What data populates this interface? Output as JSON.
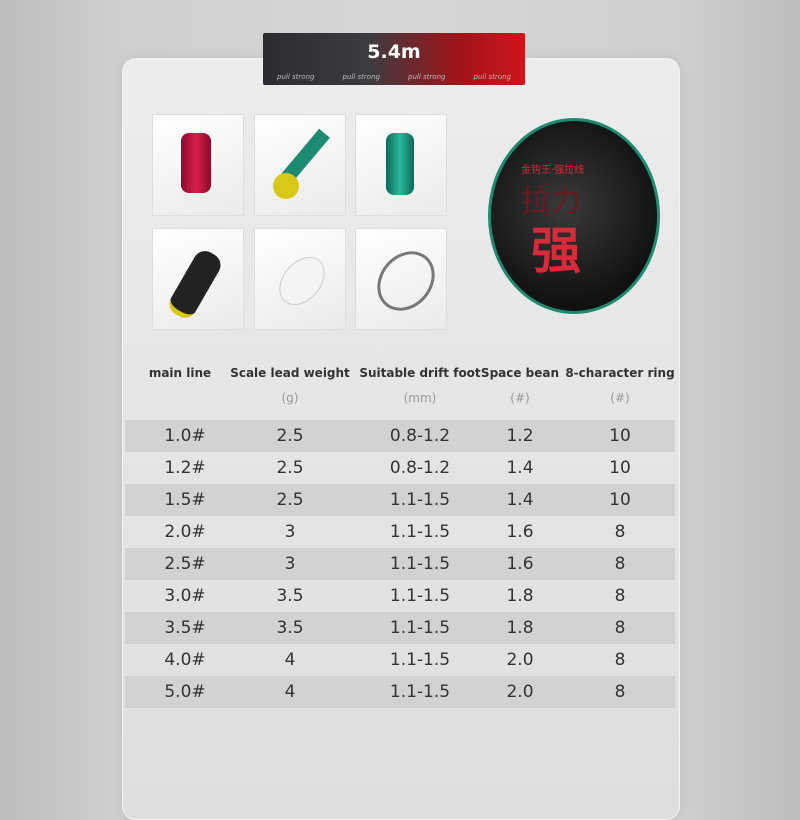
{
  "banner": {
    "title": "5.4m",
    "tags": [
      "pull strong",
      "pull strong",
      "pull strong",
      "pull strong"
    ]
  },
  "product_images": [
    "red-space-bean",
    "green-float-seat",
    "green-space-bean",
    "black-lead-sinker",
    "clear-bead",
    "swivel-8-ring"
  ],
  "reel": {
    "top_text": "金钩王·强拉线",
    "character": "强",
    "side_text": "拉力"
  },
  "table": {
    "headers": [
      "main line",
      "Scale lead weight",
      "Suitable drift foot",
      "Space bean",
      "8-character ring"
    ],
    "units": [
      "",
      "(g)",
      "(mm)",
      "(#)",
      "(#)"
    ],
    "rows": [
      [
        "1.0#",
        "2.5",
        "0.8-1.2",
        "1.2",
        "10"
      ],
      [
        "1.2#",
        "2.5",
        "0.8-1.2",
        "1.4",
        "10"
      ],
      [
        "1.5#",
        "2.5",
        "1.1-1.5",
        "1.4",
        "10"
      ],
      [
        "2.0#",
        "3",
        "1.1-1.5",
        "1.6",
        "8"
      ],
      [
        "2.5#",
        "3",
        "1.1-1.5",
        "1.6",
        "8"
      ],
      [
        "3.0#",
        "3.5",
        "1.1-1.5",
        "1.8",
        "8"
      ],
      [
        "3.5#",
        "3.5",
        "1.1-1.5",
        "1.8",
        "8"
      ],
      [
        "4.0#",
        "4",
        "1.1-1.5",
        "2.0",
        "8"
      ],
      [
        "5.0#",
        "4",
        "1.1-1.5",
        "2.0",
        "8"
      ]
    ]
  },
  "colors": {
    "accent_red": "#d0141c",
    "accent_green": "#1d8a72"
  }
}
